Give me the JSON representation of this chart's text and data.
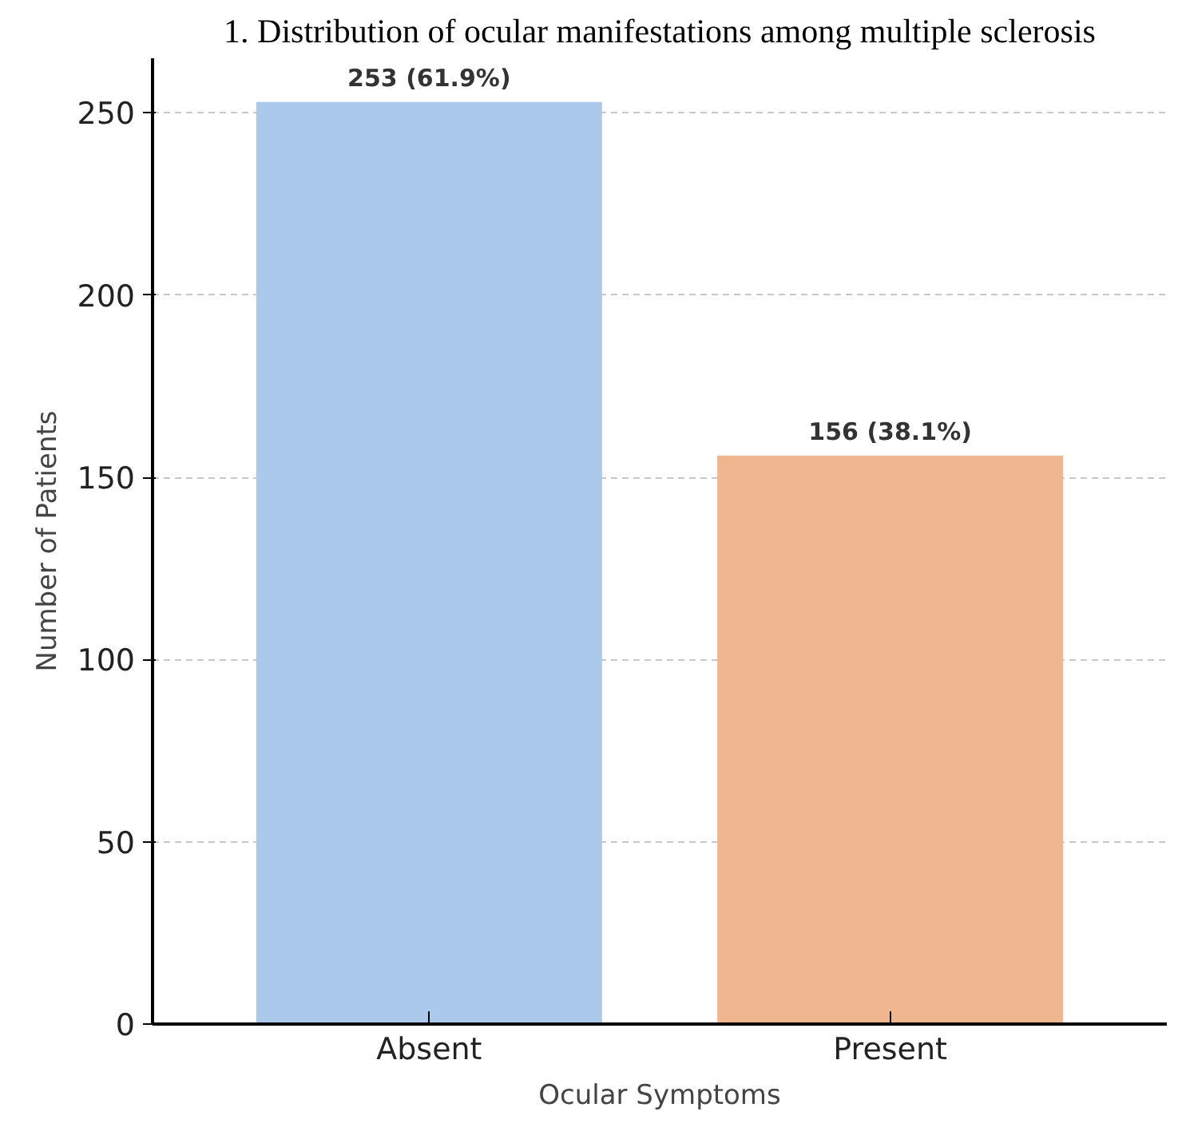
{
  "chart_data": {
    "type": "bar",
    "title": "1. Distribution of ocular manifestations among multiple sclerosis",
    "xlabel": "Ocular Symptoms",
    "ylabel": "Number of Patients",
    "categories": [
      "Absent",
      "Present"
    ],
    "values": [
      253,
      156
    ],
    "colors": [
      "#abc9eb",
      "#f0b690"
    ],
    "value_labels": [
      "253 (61.9%)",
      "156 (38.1%)"
    ],
    "ylim": [
      0,
      265
    ],
    "yticks": [
      0,
      50,
      100,
      150,
      200,
      250
    ],
    "grid": "y"
  }
}
